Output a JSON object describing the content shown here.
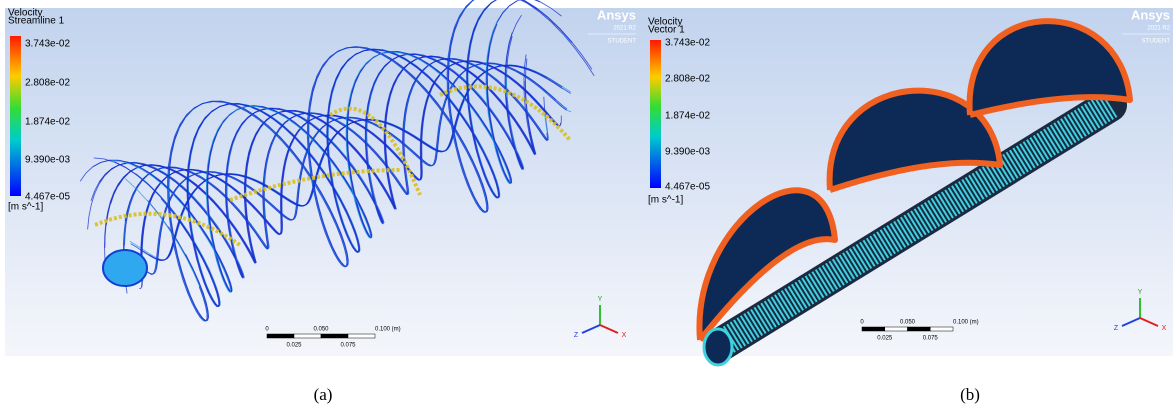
{
  "panels": [
    {
      "caption": "(a)",
      "legend": {
        "title": "Velocity",
        "subtitle": "Streamline 1",
        "labels": [
          "3.743e-02",
          "2.808e-02",
          "1.874e-02",
          "9.390e-03",
          "4.467e-05"
        ],
        "unit": "[m s^-1]"
      },
      "logo": {
        "name": "Ansys",
        "version": "2021 R2",
        "edition": "STUDENT"
      },
      "scale": {
        "top": [
          "0",
          "0.050",
          "0.100  (m)"
        ],
        "bottom": [
          "0.025",
          "0.075"
        ]
      },
      "axes": [
        "Y",
        "Z",
        "X"
      ]
    },
    {
      "caption": "(b)",
      "legend": {
        "title": "Velocity",
        "subtitle": "Vector 1",
        "labels": [
          "3.743e-02",
          "2.808e-02",
          "1.874e-02",
          "9.390e-03",
          "4.467e-05"
        ],
        "unit": "[m s^-1]"
      },
      "logo": {
        "name": "Ansys",
        "version": "2021 R2",
        "edition": "STUDENT"
      },
      "scale": {
        "top": [
          "0",
          "0.050",
          "0.100  (m)"
        ],
        "bottom": [
          "0.025",
          "0.075"
        ]
      },
      "axes": [
        "Y",
        "Z",
        "X"
      ]
    }
  ]
}
